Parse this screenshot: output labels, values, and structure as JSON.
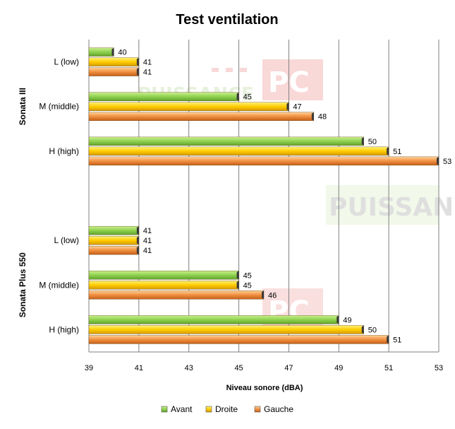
{
  "chart_data": {
    "type": "bar",
    "orientation": "horizontal",
    "title": "Test ventilation",
    "xlabel": "Niveau sonore (dBA)",
    "xlim": [
      39,
      53
    ],
    "xticks": [
      39,
      41,
      43,
      45,
      47,
      49,
      51,
      53
    ],
    "grid": true,
    "legend_position": "bottom",
    "series": [
      {
        "name": "Avant",
        "color": "#8fd14f"
      },
      {
        "name": "Droite",
        "color": "#ffcc00"
      },
      {
        "name": "Gauche",
        "color": "#f4a040"
      }
    ],
    "groups": [
      {
        "name": "Sonata III",
        "categories": [
          {
            "label": "L (low)",
            "values": [
              40,
              41,
              41
            ]
          },
          {
            "label": "M (middle)",
            "values": [
              45,
              47,
              48
            ]
          },
          {
            "label": "H (high)",
            "values": [
              50,
              51,
              53
            ]
          }
        ]
      },
      {
        "name": "Sonata Plus 550",
        "categories": [
          {
            "label": "L (low)",
            "values": [
              41,
              41,
              41
            ]
          },
          {
            "label": "M (middle)",
            "values": [
              45,
              45,
              46
            ]
          },
          {
            "label": "H (high)",
            "values": [
              49,
              50,
              51
            ]
          }
        ]
      }
    ]
  },
  "watermark": {
    "logo_text": "PUISSANCE PC"
  }
}
